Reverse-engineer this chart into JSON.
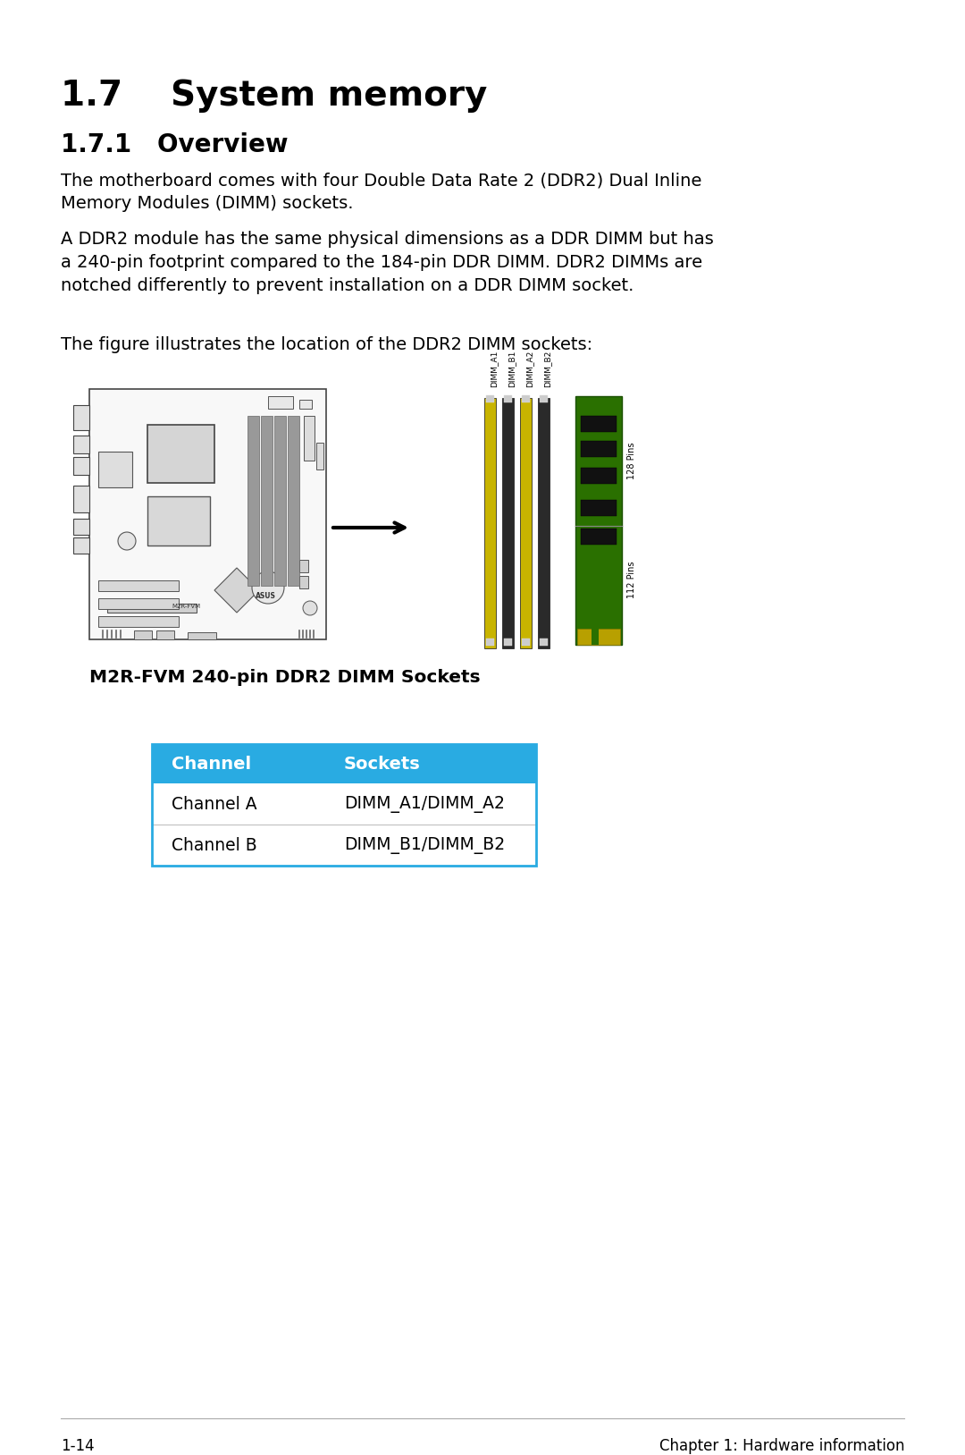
{
  "title_main": "1.7    System memory",
  "title_sub": "1.7.1   Overview",
  "para1": "The motherboard comes with four Double Data Rate 2 (DDR2) Dual Inline\nMemory Modules (DIMM) sockets.",
  "para2": "A DDR2 module has the same physical dimensions as a DDR DIMM but has\na 240-pin footprint compared to the 184-pin DDR DIMM. DDR2 DIMMs are\nnotched differently to prevent installation on a DDR DIMM socket.",
  "para3": "The figure illustrates the location of the DDR2 DIMM sockets:",
  "caption": "M2R-FVM 240-pin DDR2 DIMM Sockets",
  "table_header": [
    "Channel",
    "Sockets"
  ],
  "table_rows": [
    [
      "Channel A",
      "DIMM_A1/DIMM_A2"
    ],
    [
      "Channel B",
      "DIMM_B1/DIMM_B2"
    ]
  ],
  "header_bg": "#29ABE2",
  "header_fg": "#FFFFFF",
  "row_bg": "#FFFFFF",
  "row_fg": "#000000",
  "border_color": "#29ABE2",
  "footer_left": "1-14",
  "footer_right": "Chapter 1: Hardware information",
  "bg_color": "#FFFFFF",
  "dimm_labels_left": [
    "DIMM_A1",
    "DIMM_B1"
  ],
  "dimm_labels_right": [
    "DIMM_A2",
    "DIMM_B2"
  ],
  "pins_upper": "128 Pins",
  "pins_lower": "112 Pins"
}
